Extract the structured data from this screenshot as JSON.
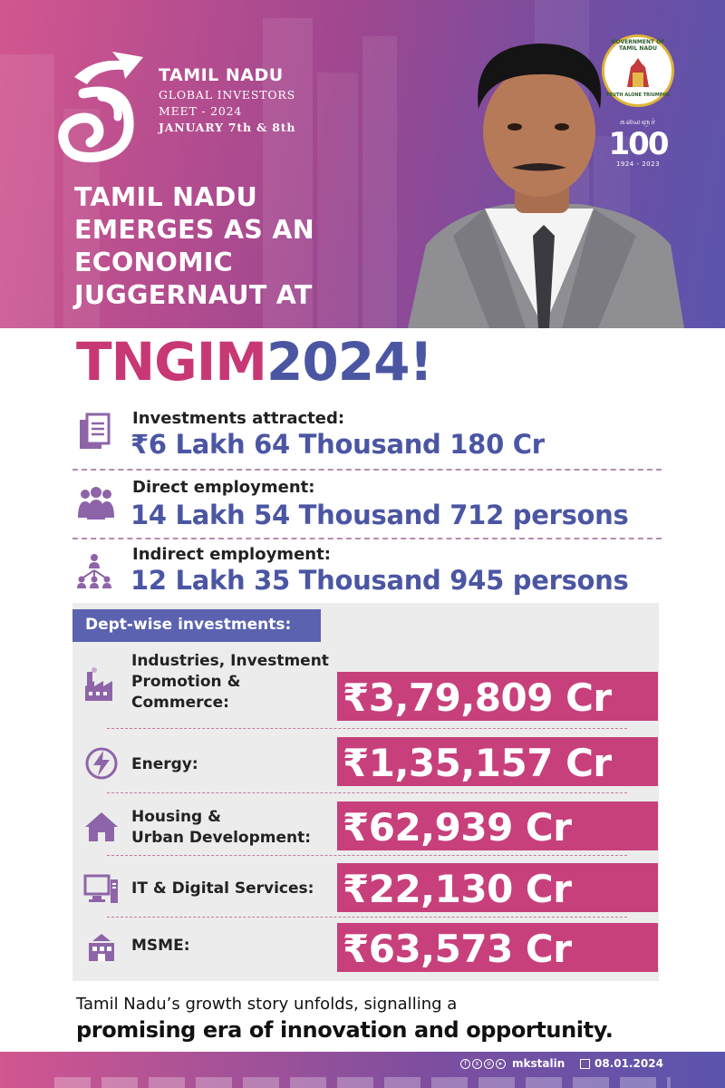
{
  "event": {
    "name": "TAMIL NADU",
    "line2": "GLOBAL INVESTORS",
    "line3": "MEET - 2024",
    "dates": "JANUARY 7th & 8th"
  },
  "headline": [
    "TAMIL NADU",
    "EMERGES AS AN",
    "ECONOMIC",
    "JUGGERNAUT AT"
  ],
  "emblem": {
    "top_text": "GOVERNMENT OF TAMIL NADU",
    "bottom_text": "TRUTH ALONE TRIUMPHS"
  },
  "centenary": {
    "tamil": "கலைஞர்",
    "number": "100",
    "years": "1924 - 2023"
  },
  "title": {
    "part1": "TNGIM",
    "part2": "2024!"
  },
  "stats": [
    {
      "label": "Investments attracted:",
      "value": "₹6 Lakh 64 Thousand 180 Cr",
      "icon": "document-icon"
    },
    {
      "label": "Direct employment:",
      "value": "14 Lakh 54 Thousand 712 persons",
      "icon": "people-group-icon"
    },
    {
      "label": "Indirect employment:",
      "value": "12 Lakh 35 Thousand 945 persons",
      "icon": "network-people-icon"
    }
  ],
  "dept_header": "Dept-wise investments:",
  "departments": [
    {
      "label_lines": [
        "Industries, Investment",
        "Promotion &",
        "Commerce:"
      ],
      "value": "₹3,79,809 Cr",
      "icon": "factory-icon"
    },
    {
      "label_lines": [
        "Energy:"
      ],
      "value": "₹1,35,157 Cr",
      "icon": "energy-bolt-icon"
    },
    {
      "label_lines": [
        "Housing &",
        "Urban Development:"
      ],
      "value": "₹62,939 Cr",
      "icon": "house-icon"
    },
    {
      "label_lines": [
        "IT & Digital Services:"
      ],
      "value": "₹22,130 Cr",
      "icon": "computer-icon"
    },
    {
      "label_lines": [
        "MSME:"
      ],
      "value": "₹63,573 Cr",
      "icon": "small-factory-icon"
    }
  ],
  "footer": {
    "line1": "Tamil Nadu’s growth story unfolds, signalling a",
    "line2": "promising era of innovation and opportunity.",
    "handle": "mkstalin",
    "date": "08.01.2024"
  },
  "colors": {
    "magenta": "#c7407b",
    "indigo": "#4b56a3",
    "panel": "#ececec",
    "header_bg": "#5b62b0"
  }
}
